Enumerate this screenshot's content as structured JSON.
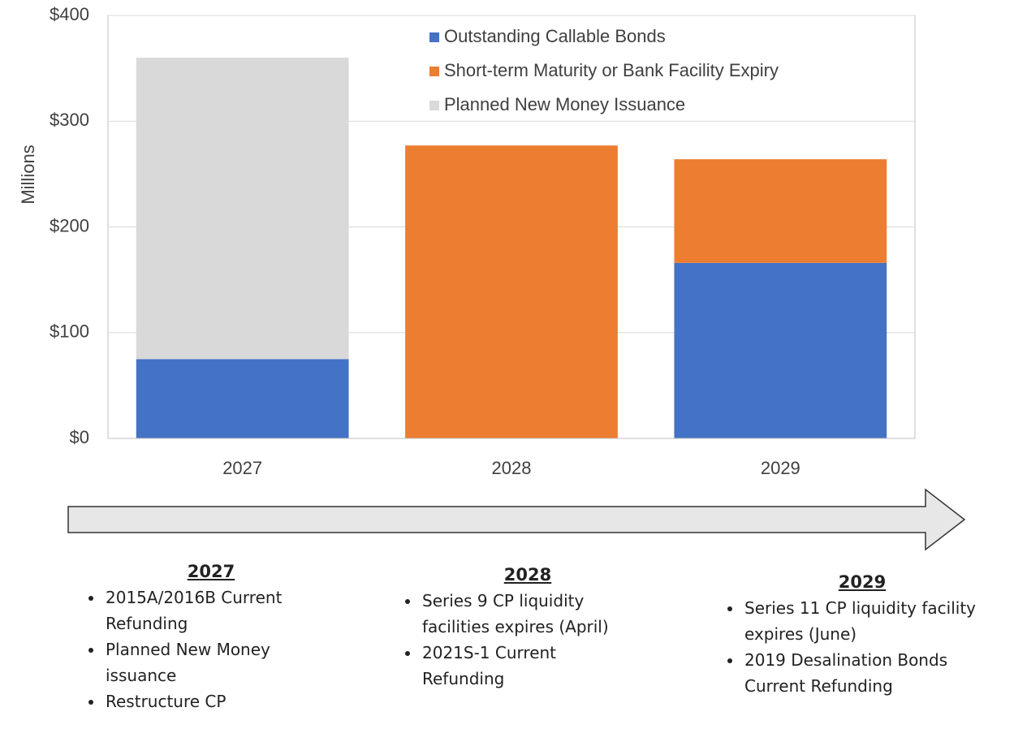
{
  "chart_data": {
    "type": "stacked_bar",
    "y_label": "Millions",
    "categories": [
      "2027",
      "2028",
      "2029"
    ],
    "series": [
      {
        "name": "Outstanding Callable Bonds",
        "color": "#4472c4",
        "values": [
          75,
          0,
          166
        ]
      },
      {
        "name": "Short-term Maturity or Bank Facility Expiry",
        "color": "#ed7d31",
        "values": [
          0,
          277,
          98
        ]
      },
      {
        "name": "Planned New Money Issuance",
        "color": "#d9d9d9",
        "values": [
          285,
          0,
          0
        ]
      }
    ],
    "ylim": [
      0,
      400
    ],
    "yticks": [
      {
        "value": 0,
        "label": "$0"
      },
      {
        "value": 100,
        "label": "$100"
      },
      {
        "value": 200,
        "label": "$200"
      },
      {
        "value": 300,
        "label": "$300"
      },
      {
        "value": 400,
        "label": "$400"
      }
    ],
    "grid": true,
    "legend": "top"
  },
  "notes": [
    {
      "heading": "2027",
      "items": [
        "2015A/2016B Current Refunding",
        "Planned New Money issuance",
        "Restructure CP"
      ]
    },
    {
      "heading": "2028",
      "items": [
        "Series 9 CP liquidity facilities expires (April)",
        "2021S-1 Current Refunding"
      ]
    },
    {
      "heading": "2029",
      "items": [
        "Series 11 CP liquidity facility expires (June)",
        "2019 Desalination Bonds Current Refunding"
      ]
    }
  ]
}
